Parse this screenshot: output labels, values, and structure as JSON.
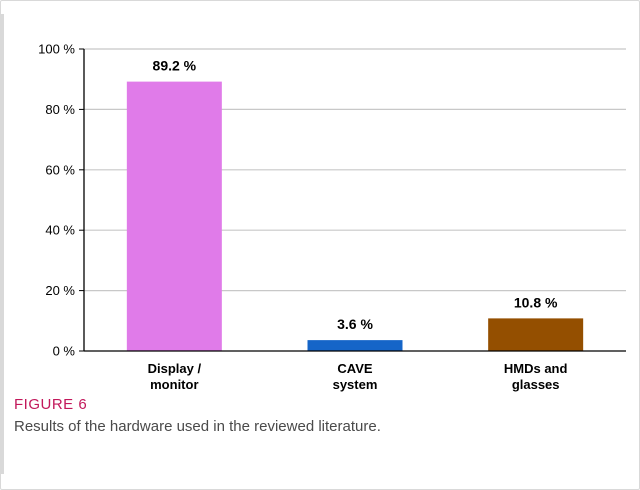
{
  "figure": {
    "label": "FIGURE 6",
    "caption": "Results of the hardware used in the reviewed literature."
  },
  "chart_data": {
    "type": "bar",
    "categories": [
      [
        "Display /",
        "monitor"
      ],
      [
        "CAVE",
        "system"
      ],
      [
        "HMDs and",
        "glasses"
      ]
    ],
    "values": [
      89.2,
      3.6,
      10.8
    ],
    "value_labels": [
      "89.2 %",
      "3.6 %",
      "10.8 %"
    ],
    "colors": [
      "#e07be9",
      "#1565c8",
      "#944f00"
    ],
    "ylim": [
      0,
      100
    ],
    "yticks": [
      0,
      20,
      40,
      60,
      80,
      100
    ],
    "ytick_labels": [
      "0 %",
      "20 %",
      "40 %",
      "60 %",
      "80 %",
      "100 %"
    ],
    "grid": true,
    "title": "",
    "xlabel": "",
    "ylabel": ""
  }
}
